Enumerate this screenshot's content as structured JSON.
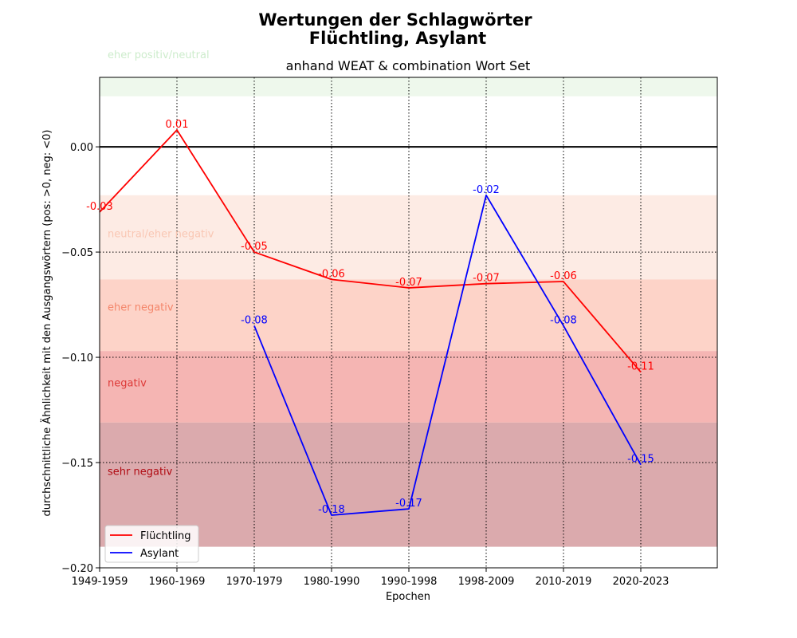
{
  "chart_data": {
    "type": "line",
    "title_line1": "Wertungen der Schlagwörter",
    "title_line2": "Flüchtling, Asylant",
    "subtitle": "anhand WEAT & combination Wort Set",
    "xlabel": "Epochen",
    "ylabel": "durchschnittliche Ähnlichkeit mit den Ausgangswörtern (pos: >0, neg: <0)",
    "categories": [
      "1949-1959",
      "1960-1969",
      "1970-1979",
      "1980-1990",
      "1990-1998",
      "1998-2009",
      "2010-2019",
      "2020-2023"
    ],
    "ylim": [
      -0.2,
      0.033
    ],
    "yticks": [
      {
        "value": 0.0,
        "label": "0.00"
      },
      {
        "value": -0.05,
        "label": "−0.05"
      },
      {
        "value": -0.1,
        "label": "−0.10"
      },
      {
        "value": -0.15,
        "label": "−0.15"
      },
      {
        "value": -0.2,
        "label": "−0.20"
      }
    ],
    "zero_line": true,
    "grid": true,
    "legend_position": "lower-left",
    "zones": [
      {
        "label": "eher positiv/neutral",
        "from": 0.024,
        "to": 0.033,
        "fill": "#eef8ec",
        "text_color": "#cdeccc",
        "label_at": 0.044
      },
      {
        "label": "neutral/eher negativ",
        "from": -0.063,
        "to": -0.023,
        "fill": "#fdebe4",
        "text_color": "#f9c7b4",
        "label_at": -0.041
      },
      {
        "label": "eher negativ",
        "from": -0.097,
        "to": -0.063,
        "fill": "#fdd3c8",
        "text_color": "#f4866b",
        "label_at": -0.076
      },
      {
        "label": "negativ",
        "from": -0.131,
        "to": -0.097,
        "fill": "#f5b5b3",
        "text_color": "#dd3a38",
        "label_at": -0.112
      },
      {
        "label": "sehr negativ",
        "from": -0.19,
        "to": -0.131,
        "fill": "#dbaaad",
        "text_color": "#b00a12",
        "label_at": -0.154
      }
    ],
    "series": [
      {
        "name": "Flüchtling",
        "color": "#ff0000",
        "values": [
          -0.031,
          0.008,
          -0.05,
          -0.063,
          -0.067,
          -0.065,
          -0.064,
          -0.107
        ],
        "labels": [
          "-0.03",
          "0.01",
          "-0.05",
          "-0.06",
          "-0.07",
          "-0.07",
          "-0.06",
          "-0.11"
        ]
      },
      {
        "name": "Asylant",
        "color": "#0000ff",
        "values": [
          null,
          null,
          -0.085,
          -0.175,
          -0.172,
          -0.023,
          -0.085,
          -0.151
        ],
        "labels": [
          null,
          null,
          "-0.08",
          "-0.18",
          "-0.17",
          "-0.02",
          "-0.08",
          "-0.15"
        ]
      }
    ]
  }
}
